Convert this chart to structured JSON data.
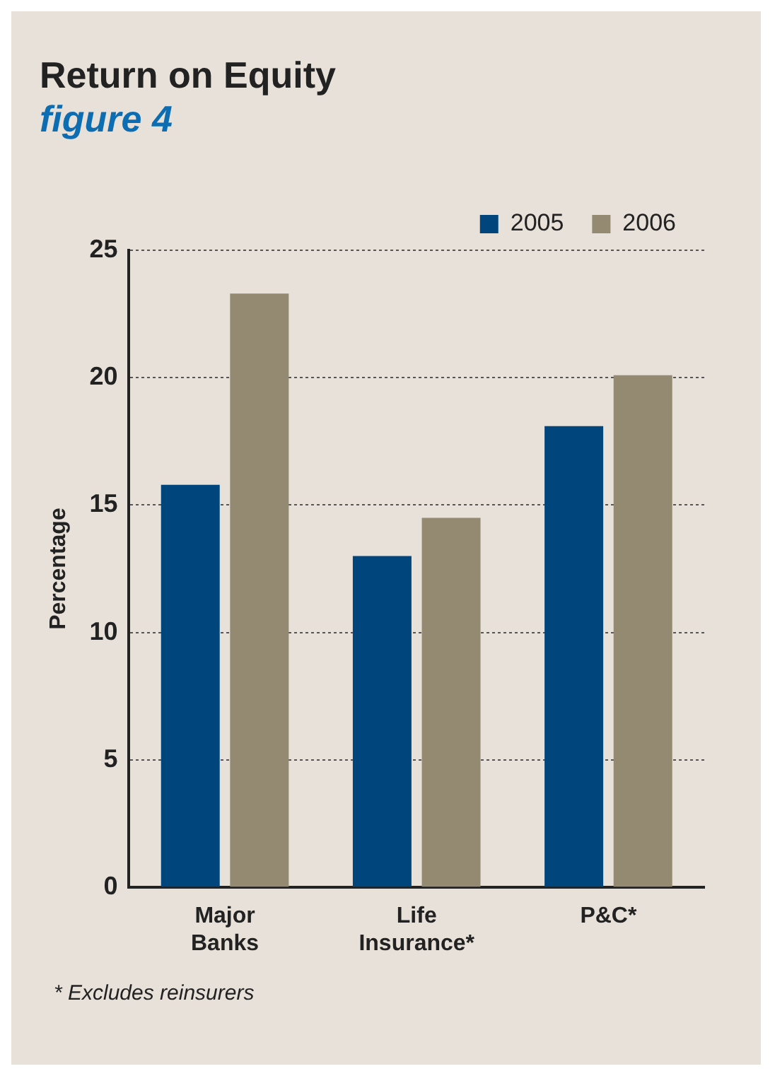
{
  "chart_data": {
    "type": "bar",
    "title": "Return on Equity",
    "subtitle": "figure 4",
    "ylabel": "Percentage",
    "categories": [
      "Major\nBanks",
      "Life\nInsurance*",
      "P&C*"
    ],
    "series": [
      {
        "name": "2005",
        "color": "#00457c",
        "values": [
          15.8,
          13.0,
          18.1
        ]
      },
      {
        "name": "2006",
        "color": "#948a72",
        "values": [
          23.3,
          14.5,
          20.1
        ]
      }
    ],
    "ylim": [
      0,
      25
    ],
    "yticks": [
      0,
      5,
      10,
      15,
      20,
      25
    ],
    "grid": "y",
    "legend": "top right",
    "annotations": [
      "* Excludes reinsurers"
    ]
  }
}
